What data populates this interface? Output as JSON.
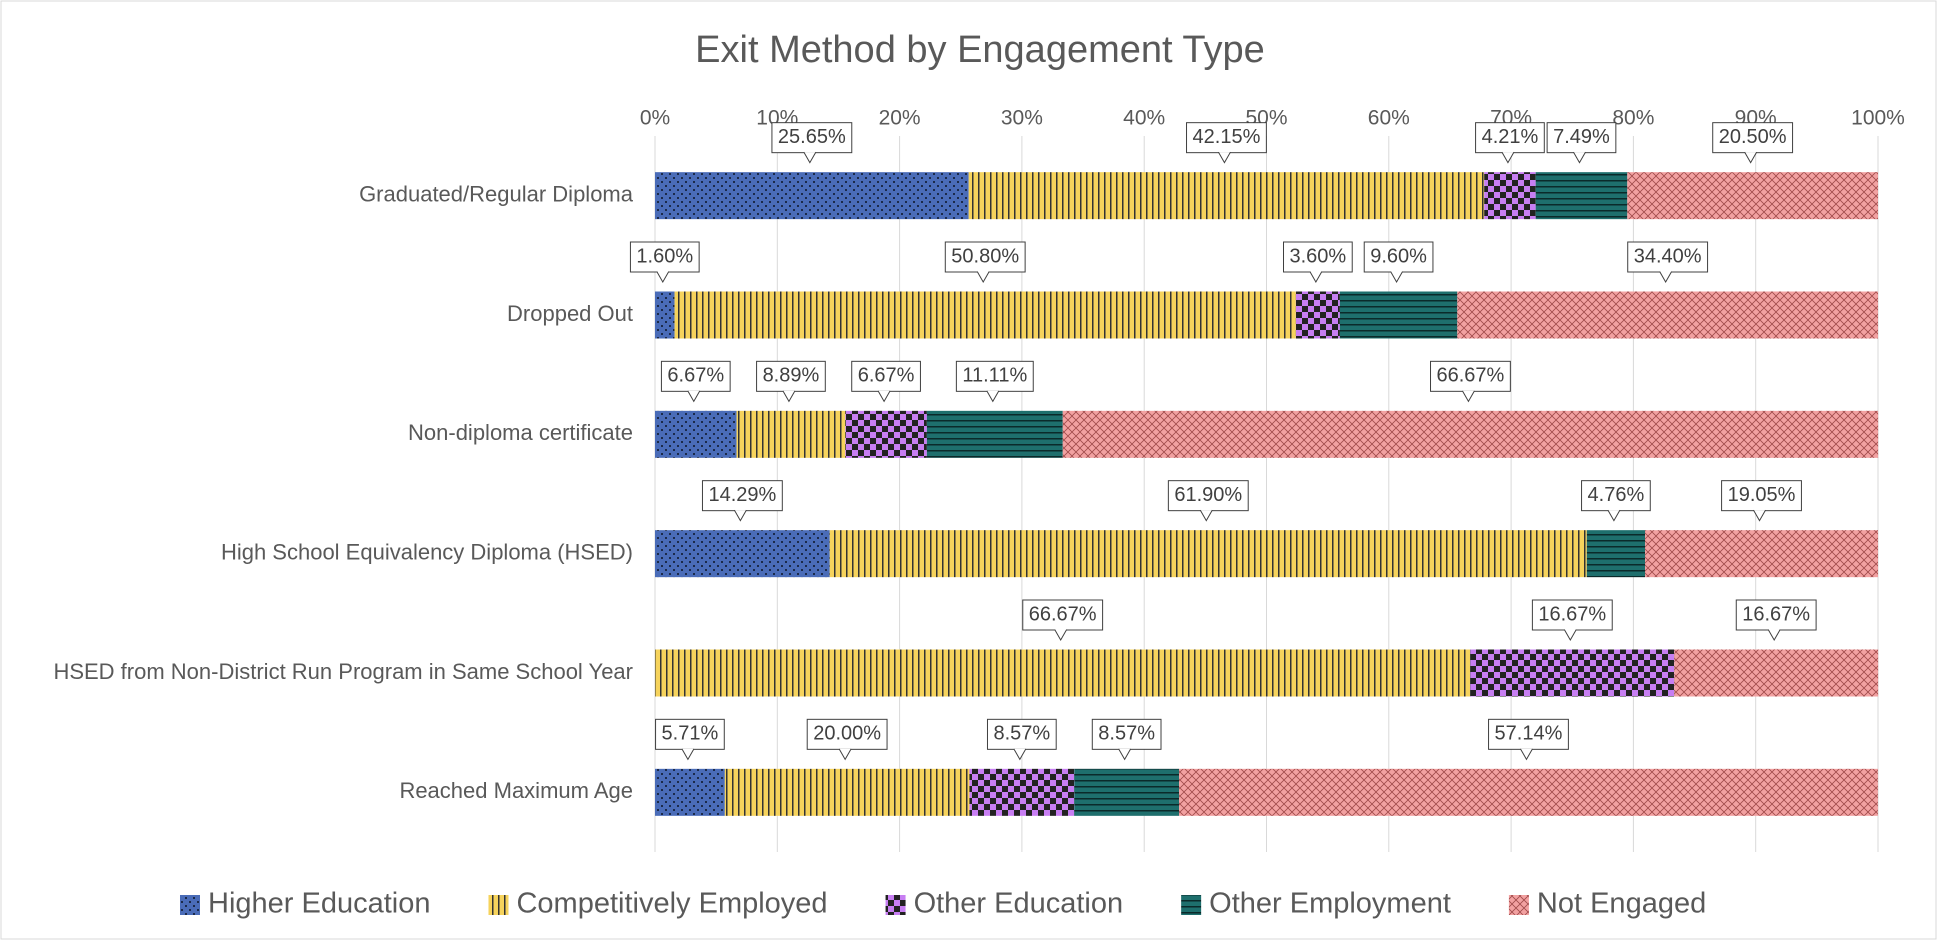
{
  "chart_data": {
    "type": "stacked-barh",
    "title": "Exit Method by Engagement Type",
    "categories": [
      "Graduated/Regular Diploma",
      "Dropped Out",
      "Non-diploma certificate",
      "High School Equivalency Diploma (HSED)",
      "HSED from Non-District Run Program in Same School Year",
      "Reached Maximum Age"
    ],
    "series": [
      {
        "name": "Higher Education",
        "color": "#4a6cb8",
        "values": [
          25.65,
          1.6,
          6.67,
          14.29,
          0,
          5.71
        ],
        "value_labels": [
          "25.65%",
          "1.60%",
          "6.67%",
          "14.29%",
          null,
          "5.71%"
        ]
      },
      {
        "name": "Competitively Employed",
        "color": "#f6d35c",
        "values": [
          42.15,
          50.8,
          8.89,
          61.9,
          66.67,
          20.0
        ],
        "value_labels": [
          "42.15%",
          "50.80%",
          "8.89%",
          "61.90%",
          "66.67%",
          "20.00%"
        ]
      },
      {
        "name": "Other Education",
        "color": "#c77ef2",
        "values": [
          4.21,
          3.6,
          6.67,
          0,
          16.67,
          8.57
        ],
        "value_labels": [
          "4.21%",
          "3.60%",
          "6.67%",
          null,
          "16.67%",
          "8.57%"
        ]
      },
      {
        "name": "Other Employment",
        "color": "#1e6f6d",
        "values": [
          7.49,
          9.6,
          11.11,
          4.76,
          0,
          8.57
        ],
        "value_labels": [
          "7.49%",
          "9.60%",
          "11.11%",
          "4.76%",
          null,
          "8.57%"
        ]
      },
      {
        "name": "Not Engaged",
        "color": "#f2a1a1",
        "values": [
          20.5,
          34.4,
          66.67,
          19.05,
          16.67,
          57.14
        ],
        "value_labels": [
          "20.50%",
          "34.40%",
          "66.67%",
          "19.05%",
          "16.67%",
          "57.14%"
        ]
      }
    ],
    "xlim": [
      0,
      100
    ],
    "xticks": [
      {
        "value": 0,
        "label": "0%"
      },
      {
        "value": 10,
        "label": "10%"
      },
      {
        "value": 20,
        "label": "20%"
      },
      {
        "value": 30,
        "label": "30%"
      },
      {
        "value": 40,
        "label": "40%"
      },
      {
        "value": 50,
        "label": "50%"
      },
      {
        "value": 60,
        "label": "60%"
      },
      {
        "value": 70,
        "label": "70%"
      },
      {
        "value": 80,
        "label": "80%"
      },
      {
        "value": 90,
        "label": "90%"
      },
      {
        "value": 100,
        "label": "100%"
      }
    ],
    "grid": true,
    "legend": "bottom"
  }
}
